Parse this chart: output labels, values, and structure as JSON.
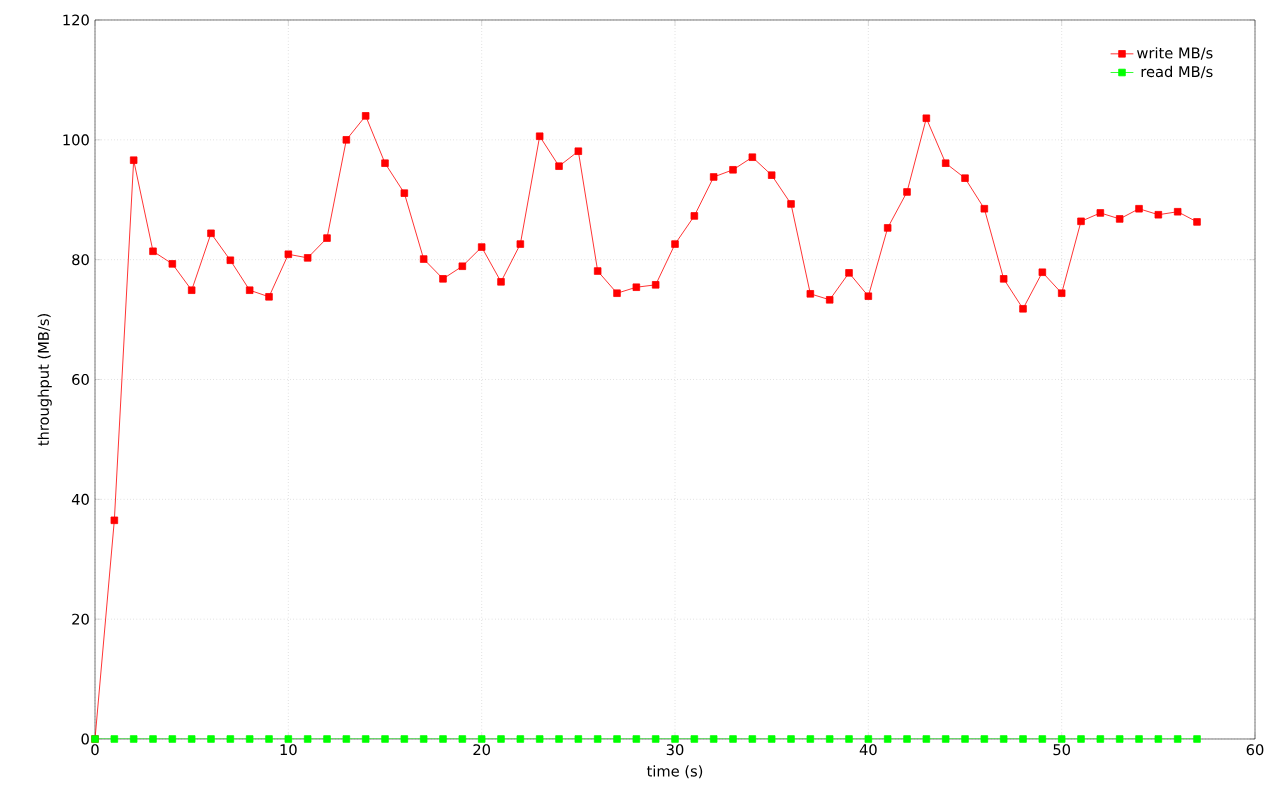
{
  "chart_data": {
    "type": "line",
    "xlabel": "time (s)",
    "ylabel": "throughput (MB/s)",
    "x": [
      0,
      1,
      2,
      3,
      4,
      5,
      6,
      7,
      8,
      9,
      10,
      11,
      12,
      13,
      14,
      15,
      16,
      17,
      18,
      19,
      20,
      21,
      22,
      23,
      24,
      25,
      26,
      27,
      28,
      29,
      30,
      31,
      32,
      33,
      34,
      35,
      36,
      37,
      38,
      39,
      40,
      41,
      42,
      43,
      44,
      45,
      46,
      47,
      48,
      49,
      50,
      51,
      52,
      53,
      54,
      55,
      56,
      57
    ],
    "series": [
      {
        "name": "write MB/s",
        "color": "#ff0000",
        "values": [
          0,
          36.5,
          96.6,
          81.4,
          79.3,
          74.9,
          84.4,
          79.9,
          74.9,
          73.8,
          80.9,
          80.3,
          83.6,
          100,
          104,
          96.1,
          91.1,
          80.1,
          76.8,
          78.9,
          82.1,
          76.3,
          82.6,
          100.6,
          95.6,
          98.1,
          78.1,
          74.4,
          75.4,
          75.8,
          82.6,
          87.3,
          93.8,
          95.0,
          97.1,
          94.1,
          89.3,
          74.3,
          73.3,
          77.8,
          73.9,
          85.3,
          91.3,
          103.6,
          96.1,
          93.6,
          88.5,
          76.8,
          71.8,
          77.9,
          74.4,
          86.4,
          87.8,
          86.8,
          88.5,
          87.5,
          88.0,
          86.3
        ]
      },
      {
        "name": "read MB/s",
        "color": "#00ff00",
        "values": [
          0,
          0,
          0,
          0,
          0,
          0,
          0,
          0,
          0,
          0,
          0,
          0,
          0,
          0,
          0,
          0,
          0,
          0,
          0,
          0,
          0,
          0,
          0,
          0,
          0,
          0,
          0,
          0,
          0,
          0,
          0,
          0,
          0,
          0,
          0,
          0,
          0,
          0,
          0,
          0,
          0,
          0,
          0,
          0,
          0,
          0,
          0,
          0,
          0,
          0,
          0,
          0,
          0,
          0,
          0,
          0,
          0,
          0
        ]
      }
    ],
    "xlim": [
      0,
      60
    ],
    "xticks": [
      0,
      10,
      20,
      30,
      40,
      50,
      60
    ],
    "ylim": [
      0,
      120
    ],
    "yticks": [
      0,
      20,
      40,
      60,
      80,
      100,
      120
    ],
    "grid": true,
    "legend": "top right",
    "marker": "square",
    "line_style": "solid"
  }
}
